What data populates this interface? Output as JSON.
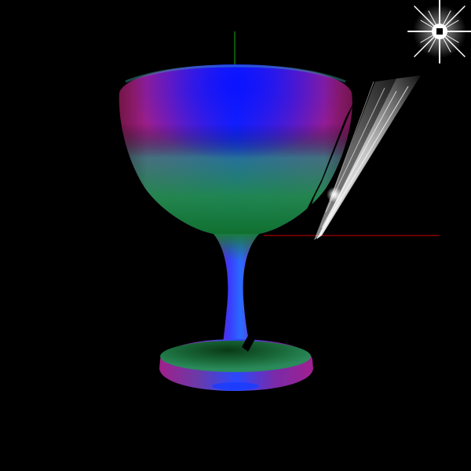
{
  "scene": {
    "background_color": "#000000",
    "object": "goblet",
    "shading": "normal-map",
    "axes": {
      "x_axis_color": "#cc0000",
      "y_axis_color": "#22aa22"
    },
    "light_source": {
      "glyph": "star-burst-icon",
      "core_color": "#000000",
      "glow_color": "#ffffff"
    },
    "light_ray": {
      "color": "#ffffff",
      "shadow_color": "#000000"
    }
  }
}
